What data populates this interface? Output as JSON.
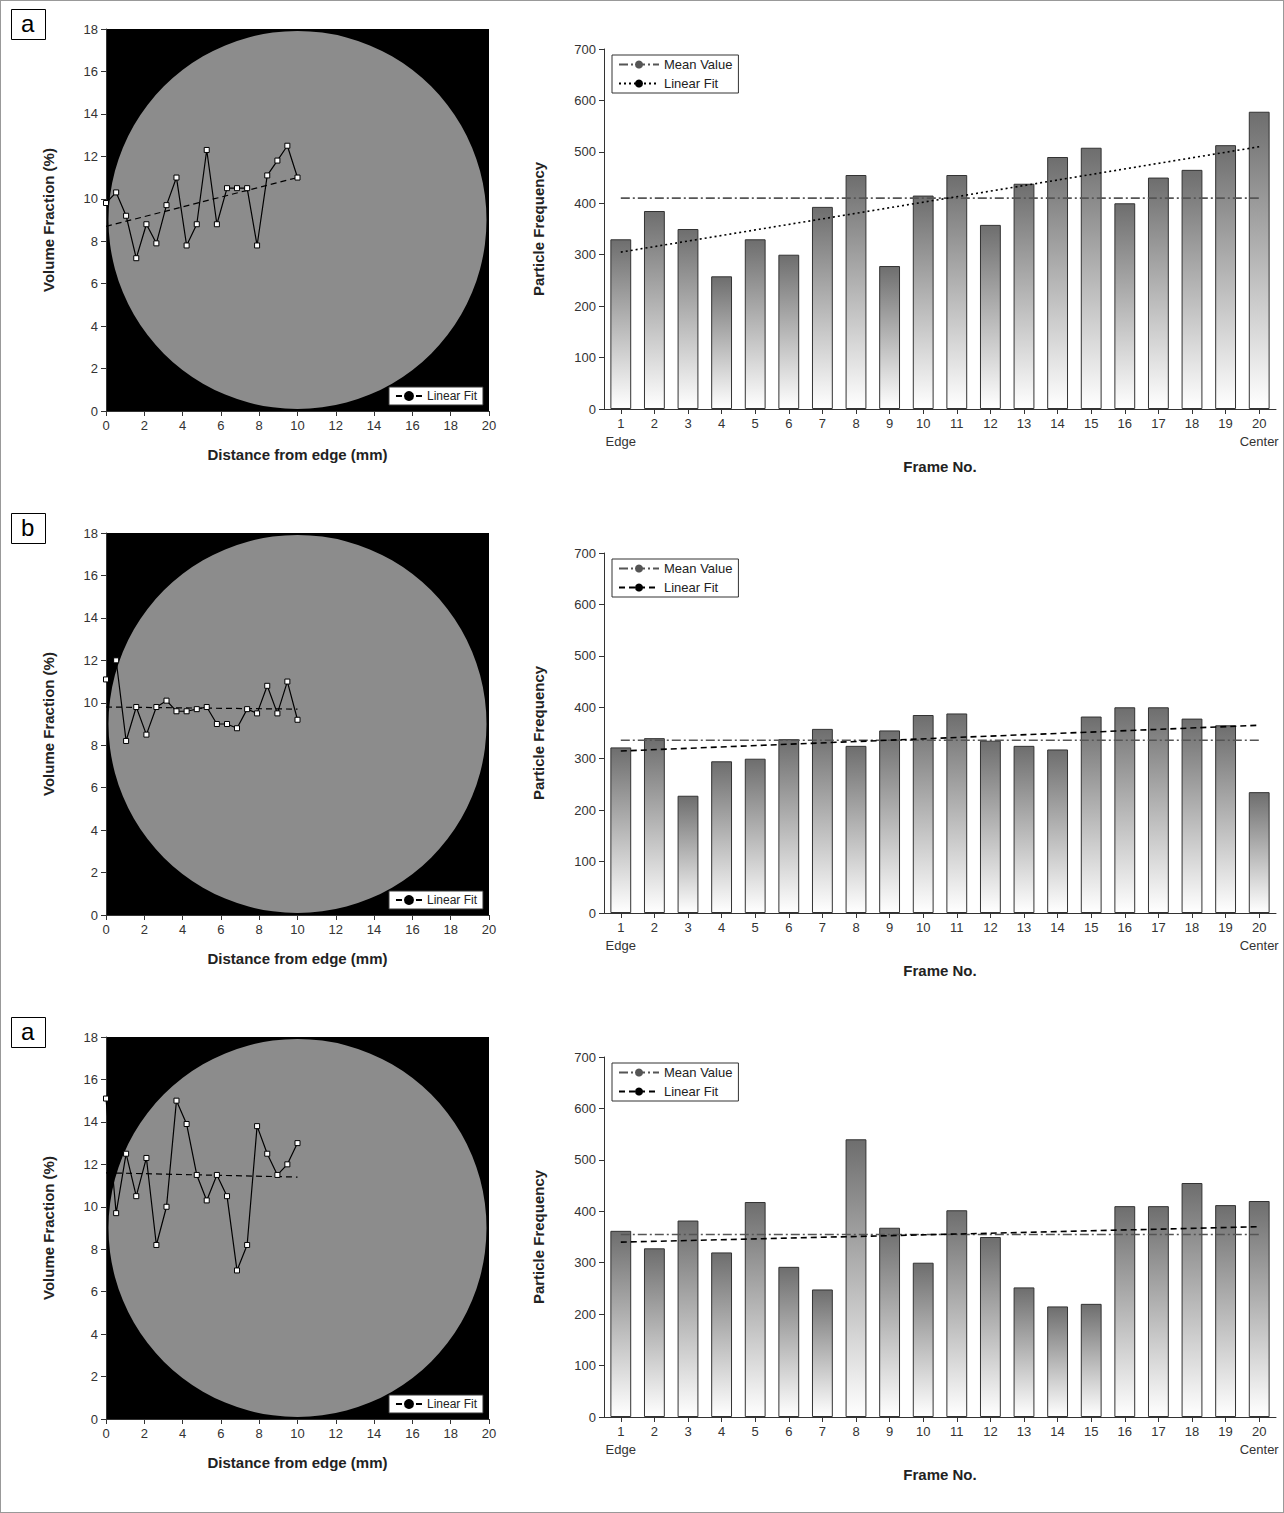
{
  "chart_data": [
    {
      "type": "line",
      "title": "a",
      "x_label": "Distance from edge (mm)",
      "y_label": "Volume Fraction (%)",
      "xlim": [
        0,
        20
      ],
      "xticks": [
        0,
        2,
        4,
        6,
        8,
        10,
        12,
        14,
        16,
        18,
        20
      ],
      "ylim": [
        0,
        18
      ],
      "yticks": [
        0,
        2,
        4,
        6,
        8,
        10,
        12,
        14,
        16,
        18
      ],
      "grid": false,
      "legend": "lower right",
      "series": [
        {
          "x": [
            0,
            0.53,
            1.05,
            1.58,
            2.11,
            2.63,
            3.16,
            3.68,
            4.21,
            4.74,
            5.26,
            5.79,
            6.32,
            6.84,
            7.37,
            7.89,
            8.42,
            8.95,
            9.47,
            10
          ],
          "values": [
            9.8,
            10.3,
            9.2,
            7.2,
            8.8,
            7.9,
            9.7,
            11.0,
            7.8,
            8.8,
            12.3,
            8.8,
            10.5,
            10.5,
            10.5,
            7.8,
            11.1,
            11.8,
            12.5,
            11.0
          ],
          "color": "#000000",
          "marker": "square",
          "line_style": "solid"
        },
        {
          "name": "Linear Fit",
          "x": [
            0,
            10
          ],
          "values": [
            8.7,
            11.0
          ],
          "color": "#000000",
          "marker": "none",
          "line_style": "dashed"
        }
      ]
    },
    {
      "type": "bar",
      "x_label": "Frame No.",
      "y_label": "Particle Frequency",
      "categories": [
        "1",
        "2",
        "3",
        "4",
        "5",
        "6",
        "7",
        "8",
        "9",
        "10",
        "11",
        "12",
        "13",
        "14",
        "15",
        "16",
        "17",
        "18",
        "19",
        "20"
      ],
      "annotations": [
        {
          "text": "Edge",
          "category": "1"
        },
        {
          "text": "Center",
          "category": "20"
        }
      ],
      "ylim": [
        0,
        700
      ],
      "yticks": [
        0,
        100,
        200,
        300,
        400,
        500,
        600,
        700
      ],
      "grid": false,
      "legend": "upper left",
      "series": [
        {
          "type": "bar",
          "values": [
            330,
            385,
            350,
            258,
            330,
            300,
            393,
            455,
            278,
            415,
            455,
            358,
            438,
            490,
            508,
            400,
            450,
            465,
            513,
            578
          ],
          "color": "#6e6e6e"
        },
        {
          "type": "line",
          "name": "Mean Value",
          "values": [
            410,
            null,
            null,
            null,
            null,
            null,
            null,
            null,
            null,
            null,
            null,
            null,
            null,
            null,
            null,
            null,
            null,
            null,
            null,
            410
          ],
          "color": "#555555",
          "line_style": "dashdot"
        },
        {
          "type": "line",
          "name": "Linear Fit",
          "values": [
            305,
            null,
            null,
            null,
            null,
            null,
            null,
            null,
            null,
            null,
            null,
            null,
            null,
            null,
            null,
            null,
            null,
            null,
            null,
            510
          ],
          "color": "#000000",
          "line_style": "dotted"
        }
      ]
    },
    {
      "type": "line",
      "title": "b",
      "x_label": "Distance from edge (mm)",
      "y_label": "Volume Fraction (%)",
      "xlim": [
        0,
        20
      ],
      "xticks": [
        0,
        2,
        4,
        6,
        8,
        10,
        12,
        14,
        16,
        18,
        20
      ],
      "ylim": [
        0,
        18
      ],
      "yticks": [
        0,
        2,
        4,
        6,
        8,
        10,
        12,
        14,
        16,
        18
      ],
      "grid": false,
      "legend": "lower right",
      "series": [
        {
          "x": [
            0,
            0.53,
            1.05,
            1.58,
            2.11,
            2.63,
            3.16,
            3.68,
            4.21,
            4.74,
            5.26,
            5.79,
            6.32,
            6.84,
            7.37,
            7.89,
            8.42,
            8.95,
            9.47,
            10
          ],
          "values": [
            11.1,
            12.0,
            8.2,
            9.8,
            8.5,
            9.8,
            10.1,
            9.6,
            9.6,
            9.7,
            9.8,
            9.0,
            9.0,
            8.8,
            9.7,
            9.5,
            10.8,
            9.5,
            11.0,
            9.2
          ],
          "color": "#000000",
          "marker": "square",
          "line_style": "solid"
        },
        {
          "name": "Linear Fit",
          "x": [
            0,
            10
          ],
          "values": [
            9.8,
            9.7
          ],
          "color": "#000000",
          "marker": "none",
          "line_style": "dashed"
        }
      ]
    },
    {
      "type": "bar",
      "x_label": "Frame No.",
      "y_label": "Particle Frequency",
      "categories": [
        "1",
        "2",
        "3",
        "4",
        "5",
        "6",
        "7",
        "8",
        "9",
        "10",
        "11",
        "12",
        "13",
        "14",
        "15",
        "16",
        "17",
        "18",
        "19",
        "20"
      ],
      "annotations": [
        {
          "text": "Edge",
          "category": "1"
        },
        {
          "text": "Center",
          "category": "20"
        }
      ],
      "ylim": [
        0,
        700
      ],
      "yticks": [
        0,
        100,
        200,
        300,
        400,
        500,
        600,
        700
      ],
      "grid": false,
      "legend": "upper left",
      "series": [
        {
          "type": "bar",
          "values": [
            322,
            340,
            228,
            295,
            300,
            338,
            358,
            325,
            355,
            385,
            388,
            335,
            325,
            318,
            382,
            400,
            400,
            378,
            365,
            235
          ],
          "color": "#6e6e6e"
        },
        {
          "type": "line",
          "name": "Mean Value",
          "values": [
            336,
            null,
            null,
            null,
            null,
            null,
            null,
            null,
            null,
            null,
            null,
            null,
            null,
            null,
            null,
            null,
            null,
            null,
            null,
            336
          ],
          "color": "#555555",
          "line_style": "dashdot"
        },
        {
          "type": "line",
          "name": "Linear Fit",
          "values": [
            315,
            null,
            null,
            null,
            null,
            null,
            null,
            null,
            null,
            null,
            null,
            null,
            null,
            null,
            null,
            null,
            null,
            null,
            null,
            365
          ],
          "color": "#000000",
          "line_style": "dashed"
        }
      ]
    },
    {
      "type": "line",
      "title": "a",
      "x_label": "Distance from edge (mm)",
      "y_label": "Volume Fraction (%)",
      "xlim": [
        0,
        20
      ],
      "xticks": [
        0,
        2,
        4,
        6,
        8,
        10,
        12,
        14,
        16,
        18,
        20
      ],
      "ylim": [
        0,
        18
      ],
      "yticks": [
        0,
        2,
        4,
        6,
        8,
        10,
        12,
        14,
        16,
        18
      ],
      "grid": false,
      "legend": "lower right",
      "series": [
        {
          "x": [
            0,
            0.53,
            1.05,
            1.58,
            2.11,
            2.63,
            3.16,
            3.68,
            4.21,
            4.74,
            5.26,
            5.79,
            6.32,
            6.84,
            7.37,
            7.89,
            8.42,
            8.95,
            9.47,
            10
          ],
          "values": [
            15.1,
            9.7,
            12.5,
            10.5,
            12.3,
            8.2,
            10.0,
            15.0,
            13.9,
            11.5,
            10.3,
            11.5,
            10.5,
            7.0,
            8.2,
            13.8,
            12.5,
            11.5,
            12.0,
            13.0
          ],
          "color": "#000000",
          "marker": "square",
          "line_style": "solid"
        },
        {
          "name": "Linear Fit",
          "x": [
            0,
            10
          ],
          "values": [
            11.6,
            11.4
          ],
          "color": "#000000",
          "marker": "none",
          "line_style": "dashed"
        }
      ]
    },
    {
      "type": "bar",
      "x_label": "Frame No.",
      "y_label": "Particle Frequency",
      "categories": [
        "1",
        "2",
        "3",
        "4",
        "5",
        "6",
        "7",
        "8",
        "9",
        "10",
        "11",
        "12",
        "13",
        "14",
        "15",
        "16",
        "17",
        "18",
        "19",
        "20"
      ],
      "annotations": [
        {
          "text": "Edge",
          "category": "1"
        },
        {
          "text": "Center",
          "category": "20"
        }
      ],
      "ylim": [
        0,
        700
      ],
      "yticks": [
        0,
        100,
        200,
        300,
        400,
        500,
        600,
        700
      ],
      "grid": false,
      "legend": "upper left",
      "series": [
        {
          "type": "bar",
          "values": [
            362,
            328,
            382,
            320,
            418,
            292,
            248,
            540,
            368,
            300,
            402,
            350,
            252,
            215,
            220,
            410,
            410,
            455,
            412,
            420
          ],
          "color": "#6e6e6e"
        },
        {
          "type": "line",
          "name": "Mean Value",
          "values": [
            355,
            null,
            null,
            null,
            null,
            null,
            null,
            null,
            null,
            null,
            null,
            null,
            null,
            null,
            null,
            null,
            null,
            null,
            null,
            355
          ],
          "color": "#555555",
          "line_style": "dashdot"
        },
        {
          "type": "line",
          "name": "Linear Fit",
          "values": [
            340,
            null,
            null,
            null,
            null,
            null,
            null,
            null,
            null,
            null,
            null,
            null,
            null,
            null,
            null,
            null,
            null,
            null,
            null,
            370
          ],
          "color": "#000000",
          "line_style": "dashed"
        }
      ]
    }
  ]
}
